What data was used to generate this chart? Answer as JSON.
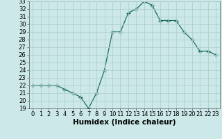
{
  "x": [
    0,
    1,
    2,
    3,
    4,
    5,
    6,
    7,
    8,
    9,
    10,
    11,
    12,
    13,
    14,
    15,
    16,
    17,
    18,
    19,
    20,
    21,
    22,
    23
  ],
  "y": [
    22.0,
    22.0,
    22.0,
    22.0,
    21.5,
    21.0,
    20.5,
    19.0,
    21.0,
    24.0,
    29.0,
    29.0,
    31.5,
    32.0,
    33.0,
    32.5,
    30.5,
    30.5,
    30.5,
    29.0,
    28.0,
    26.5,
    26.5,
    26.0
  ],
  "ylim": [
    19,
    33
  ],
  "yticks": [
    19,
    20,
    21,
    22,
    23,
    24,
    25,
    26,
    27,
    28,
    29,
    30,
    31,
    32,
    33
  ],
  "xlabel": "Humidex (Indice chaleur)",
  "line_color": "#1a6b5a",
  "marker_color": "#1a6b5a",
  "bg_color": "#cce8e8",
  "grid_color": "#b0d0d0",
  "tick_label_fontsize": 6,
  "xlabel_fontsize": 7.5
}
